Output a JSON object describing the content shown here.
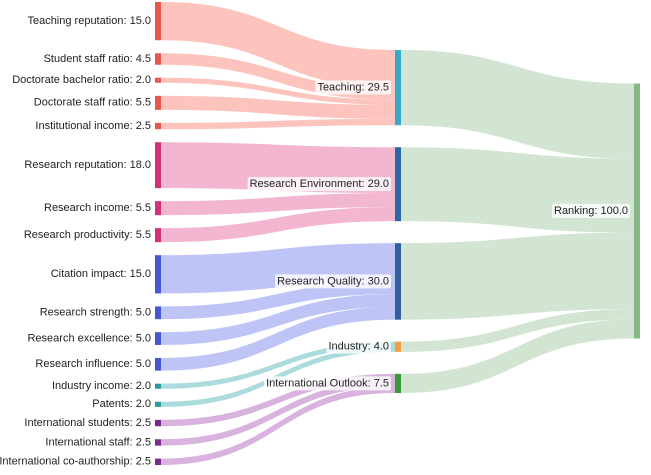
{
  "chart_data": {
    "type": "sankey",
    "groups": [
      {
        "label": "Teaching: 29.5",
        "value": 29.5,
        "color": "#36a9c6",
        "leaf_color": "#e8584a",
        "link_color": "#fbb0a6",
        "children": [
          {
            "label": "Teaching reputation: 15.0",
            "value": 15
          },
          {
            "label": "Student staff ratio: 4.5",
            "value": 4.5
          },
          {
            "label": "Doctorate bachelor ratio: 2.0",
            "value": 2
          },
          {
            "label": "Doctorate staff ratio: 5.5",
            "value": 5.5
          },
          {
            "label": "Institutional income: 2.5",
            "value": 2.5
          }
        ]
      },
      {
        "label": "Research Environment: 29.0",
        "value": 29,
        "color": "#2b66a6",
        "leaf_color": "#d42f78",
        "link_color": "#ee9ec2",
        "children": [
          {
            "label": "Research reputation: 18.0",
            "value": 18
          },
          {
            "label": "Research income: 5.5",
            "value": 5.5
          },
          {
            "label": "Research productivity: 5.5",
            "value": 5.5
          }
        ]
      },
      {
        "label": "Research Quality: 30.0",
        "value": 30,
        "color": "#2f5f9e",
        "leaf_color": "#4558d2",
        "link_color": "#a9b0f4",
        "children": [
          {
            "label": "Citation impact: 15.0",
            "value": 15
          },
          {
            "label": "Research strength: 5.0",
            "value": 5
          },
          {
            "label": "Research excellence: 5.0",
            "value": 5
          },
          {
            "label": "Research influence: 5.0",
            "value": 5
          }
        ]
      },
      {
        "label": "Industry: 4.0",
        "value": 4,
        "color": "#f0a040",
        "leaf_color": "#2a9a9c",
        "link_color": "#8fcfd0",
        "children": [
          {
            "label": "Industry income: 2.0",
            "value": 2
          },
          {
            "label": "Patents: 2.0",
            "value": 2
          }
        ]
      },
      {
        "label": "International Outlook: 7.5",
        "value": 7.5,
        "color": "#3a9a3a",
        "leaf_color": "#7a2a8a",
        "link_color": "#c99ad2",
        "children": [
          {
            "label": "International students: 2.5",
            "value": 2.5
          },
          {
            "label": "International staff: 2.5",
            "value": 2.5
          },
          {
            "label": "International co-authorship: 2.5",
            "value": 2.5
          }
        ]
      }
    ],
    "total": {
      "label": "Ranking: 100.0",
      "value": 100,
      "color": "#86b886",
      "link_color": "#c3dcc3"
    }
  }
}
